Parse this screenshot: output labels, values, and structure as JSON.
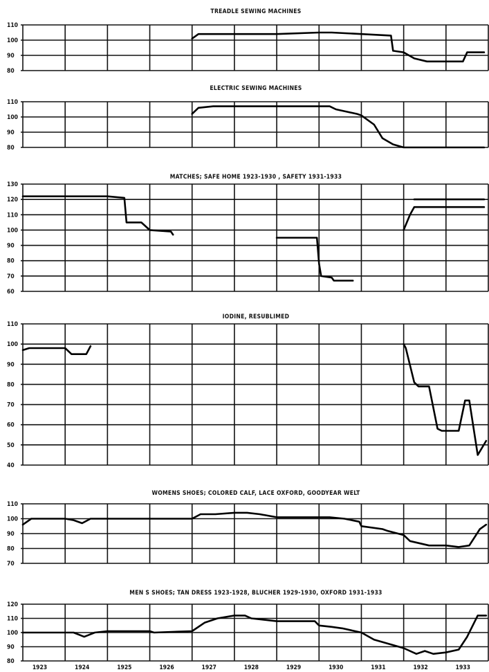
{
  "chart_data": [
    {
      "type": "line",
      "title": "TREADLE SEWING MACHINES",
      "ylim": [
        80,
        110
      ],
      "yticks": [
        80,
        90,
        100,
        110
      ],
      "grid": true,
      "series": [
        {
          "x": [
            1927,
            1927.15,
            1928,
            1929,
            1930,
            1930.3,
            1931,
            1931.7,
            1931.75,
            1932,
            1932.25,
            1932.55,
            1933,
            1933.4,
            1933.5,
            1933.9
          ],
          "y": [
            101,
            104,
            104,
            104,
            105,
            105,
            104,
            103,
            93,
            92,
            88,
            86,
            86,
            86,
            92,
            92
          ]
        }
      ]
    },
    {
      "type": "line",
      "title": "ELECTRIC SEWING MACHINES",
      "ylim": [
        80,
        110
      ],
      "yticks": [
        80,
        90,
        100,
        110
      ],
      "grid": true,
      "series": [
        {
          "x": [
            1927,
            1927.15,
            1927.5,
            1928,
            1929,
            1930,
            1930.25,
            1930.4,
            1930.9,
            1931,
            1931.3,
            1931.5,
            1931.75,
            1932,
            1932.5,
            1933.9
          ],
          "y": [
            102,
            106,
            107,
            107,
            107,
            107,
            107,
            105,
            102,
            101,
            95,
            86,
            82,
            80,
            80,
            80
          ]
        }
      ]
    },
    {
      "type": "line",
      "title": "MATCHES; SAFE HOME 1923-1930 , SAFETY 1931-1933",
      "ylim": [
        60,
        130
      ],
      "yticks": [
        60,
        70,
        80,
        90,
        100,
        110,
        120,
        130
      ],
      "grid": true,
      "series": [
        {
          "x": [
            1923,
            1924,
            1925,
            1925.4,
            1925.45,
            1925.8,
            1926,
            1926.5,
            1926.55
          ],
          "y": [
            122,
            122,
            122,
            121,
            105,
            105,
            100,
            99,
            97
          ]
        },
        {
          "x": [
            1929,
            1929.7,
            1929.95,
            1930,
            1930.05,
            1930.3,
            1930.35,
            1930.8
          ],
          "y": [
            95,
            95,
            95,
            78,
            70,
            69,
            67,
            67
          ]
        },
        {
          "x": [
            1932,
            1932.15,
            1932.25,
            1932.5,
            1933,
            1933.9
          ],
          "y": [
            100,
            110,
            115,
            115,
            115,
            115
          ]
        },
        {
          "x": [
            1932.25,
            1932.5,
            1933,
            1933.9
          ],
          "y": [
            120,
            120,
            120,
            120
          ]
        }
      ]
    },
    {
      "type": "line",
      "title": "IODINE, RESUBLIMED",
      "ylim": [
        40,
        110
      ],
      "yticks": [
        40,
        50,
        60,
        70,
        80,
        90,
        100,
        110
      ],
      "grid": true,
      "series": [
        {
          "x": [
            1923,
            1923.15,
            1923.7,
            1924,
            1924.15,
            1924.5,
            1924.6
          ],
          "y": [
            97,
            98,
            98,
            98,
            95,
            95,
            99
          ]
        },
        {
          "x": [
            1932,
            1932.05,
            1932.25,
            1932.35,
            1932.6,
            1932.8,
            1932.9,
            1933.3,
            1933.45,
            1933.55,
            1933.75,
            1933.95
          ],
          "y": [
            100,
            98,
            81,
            79,
            79,
            58,
            57,
            57,
            72,
            72,
            45,
            52
          ]
        }
      ]
    },
    {
      "type": "line",
      "title": "WOMENS SHOES; COLORED CALF, LACE OXFORD, GOODYEAR WELT",
      "ylim": [
        70,
        110
      ],
      "yticks": [
        70,
        80,
        90,
        100,
        110
      ],
      "grid": true,
      "series": [
        {
          "x": [
            1923,
            1923.1,
            1923.2,
            1924,
            1924.2,
            1924.4,
            1924.6,
            1925,
            1927,
            1927.2,
            1927.55,
            1928,
            1928.3,
            1928.6,
            1929,
            1929.5,
            1930,
            1930.25,
            1930.6,
            1930.95,
            1931,
            1931.5,
            1931.6,
            1932,
            1932.15,
            1932.6,
            1933,
            1933.3,
            1933.55,
            1933.8,
            1933.95
          ],
          "y": [
            96,
            98,
            100,
            100,
            99,
            97,
            100,
            100,
            100,
            103,
            103,
            104,
            104,
            103,
            101,
            101,
            101,
            101,
            100,
            98,
            95,
            93,
            92,
            89,
            85,
            82,
            82,
            81,
            82,
            93,
            96
          ]
        }
      ]
    },
    {
      "type": "line",
      "title": "MEN S SHOES; TAN DRESS 1923-1928, BLUCHER 1929-1930, OXFORD 1931-1933",
      "ylim": [
        80,
        120
      ],
      "yticks": [
        80,
        90,
        100,
        110,
        120
      ],
      "grid": true,
      "categories": [
        "1923",
        "1924",
        "1925",
        "1926",
        "1927",
        "1928",
        "1929",
        "1930",
        "1931",
        "1932",
        "1933"
      ],
      "series": [
        {
          "x": [
            1923,
            1924,
            1924.2,
            1924.45,
            1924.7,
            1925,
            1926,
            1926.1,
            1927,
            1927.3,
            1927.6,
            1928,
            1928.25,
            1928.4,
            1929,
            1929.9,
            1930,
            1930.3,
            1930.55,
            1931,
            1931.3,
            1931.65,
            1932,
            1932.3,
            1932.5,
            1932.7,
            1933,
            1933.3,
            1933.5,
            1933.75,
            1933.95
          ],
          "y": [
            100,
            100,
            100,
            97,
            100,
            101,
            101,
            100,
            101,
            107,
            110,
            112,
            112,
            110,
            108,
            108,
            105,
            104,
            103,
            100,
            95,
            92,
            89,
            85,
            87,
            85,
            86,
            88,
            97,
            112,
            112
          ]
        }
      ]
    }
  ]
}
